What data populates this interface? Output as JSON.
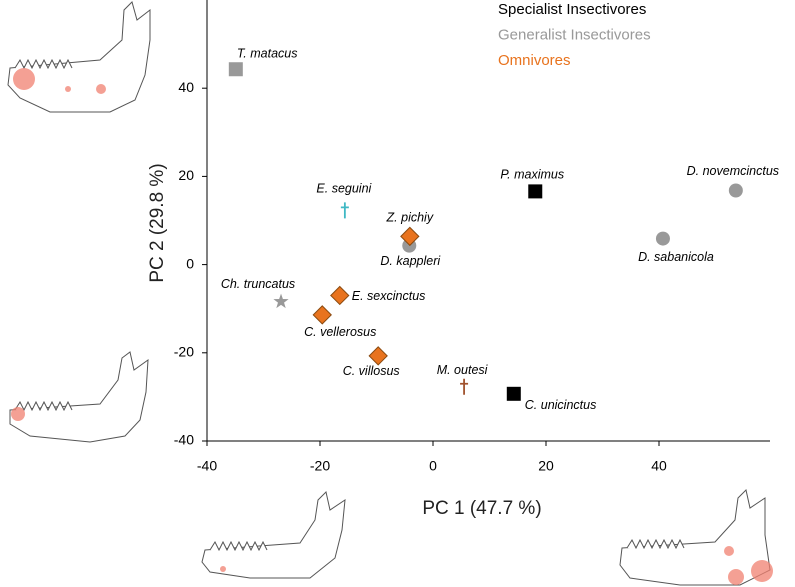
{
  "chart_data": {
    "type": "scatter",
    "x_label": "PC 1 (47.7 %)",
    "y_label": "PC 2 (29.8 %)",
    "xlim": [
      -40,
      60
    ],
    "xticks": [
      -40,
      -20,
      0,
      20,
      40
    ],
    "ylim": [
      -40,
      60
    ],
    "yticks": [
      -40,
      -20,
      0,
      20,
      40
    ],
    "series": [
      {
        "name": "Specialist Insectivores",
        "color": "#000000",
        "labels": [
          "P. maximus",
          "C. unicinctus"
        ],
        "markers": [
          "square",
          "square"
        ],
        "x": [
          18.1,
          14.3
        ],
        "y": [
          16.6,
          -29.3
        ]
      },
      {
        "name": "Generalist Insectivores",
        "color": "#999999",
        "labels": [
          "T. matacus",
          "D. kappleri",
          "D. novemcinctus",
          "D. sabanicola",
          "Ch. truncatus"
        ],
        "markers": [
          "square",
          "circle",
          "circle",
          "circle",
          "star"
        ],
        "x": [
          -34.9,
          -4.2,
          53.6,
          40.7,
          -26.9
        ],
        "y": [
          44.3,
          4.3,
          16.8,
          5.9,
          -8.4
        ]
      },
      {
        "name": "Omnivores",
        "color": "#e8731e",
        "labels": [
          "Z. pichiy",
          "E. sexcinctus",
          "C. vellerosus",
          "C. villosus"
        ],
        "markers": [
          "diamond",
          "diamond",
          "diamond",
          "diamond"
        ],
        "x": [
          -4.1,
          -16.5,
          -19.6,
          -9.7
        ],
        "y": [
          6.4,
          -7.0,
          -11.4,
          -20.7
        ]
      },
      {
        "color": "#3fb8c4",
        "labels": [
          "E. seguini"
        ],
        "markers": [
          "dagger"
        ],
        "x": [
          -15.6
        ],
        "y": [
          12.3
        ]
      },
      {
        "color": "#a0522d",
        "labels": [
          "M. outesi"
        ],
        "markers": [
          "dagger"
        ],
        "x": [
          5.5
        ],
        "y": [
          -27.7
        ]
      }
    ]
  }
}
